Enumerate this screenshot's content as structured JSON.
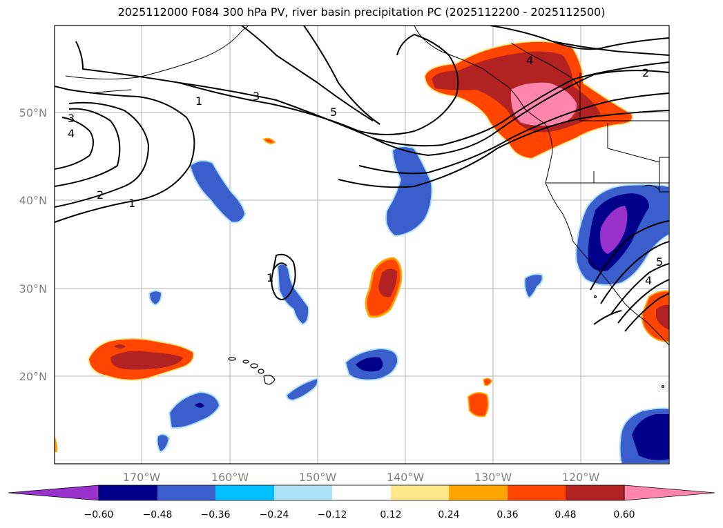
{
  "title": "2025112000 F084 300 hPa PV, river basin precipitation PC (2025112200 - 2025112500)",
  "lat_labels": [
    "50°N",
    "40°N",
    "30°N",
    "20°N"
  ],
  "lon_labels": [
    "170°W",
    "160°W",
    "150°W",
    "140°W",
    "130°W",
    "120°W"
  ],
  "contour_labels": [
    "1",
    "3",
    "5",
    "2",
    "4",
    "3",
    "4",
    "2",
    "1",
    "1",
    "4",
    "5"
  ],
  "colorbar": {
    "ticks": [
      "−0.60",
      "−0.48",
      "−0.36",
      "−0.24",
      "−0.12",
      "0.12",
      "0.24",
      "0.36",
      "0.48",
      "0.60"
    ],
    "colors": [
      "#9932cc",
      "#00008b",
      "#3a5fcd",
      "#00bfff",
      "#aee3f7",
      "#ffffff",
      "#ffe98a",
      "#ffa500",
      "#ff4500",
      "#b22222",
      "#ff85aa"
    ]
  },
  "colors": {
    "positive_outer": "#ffa500",
    "positive_mid": "#ff4500",
    "positive_inner": "#b22222",
    "positive_core": "#ff85aa",
    "negative_outer": "#3a5fcd",
    "negative_inner": "#00008b",
    "negative_core": "#9932cc"
  }
}
